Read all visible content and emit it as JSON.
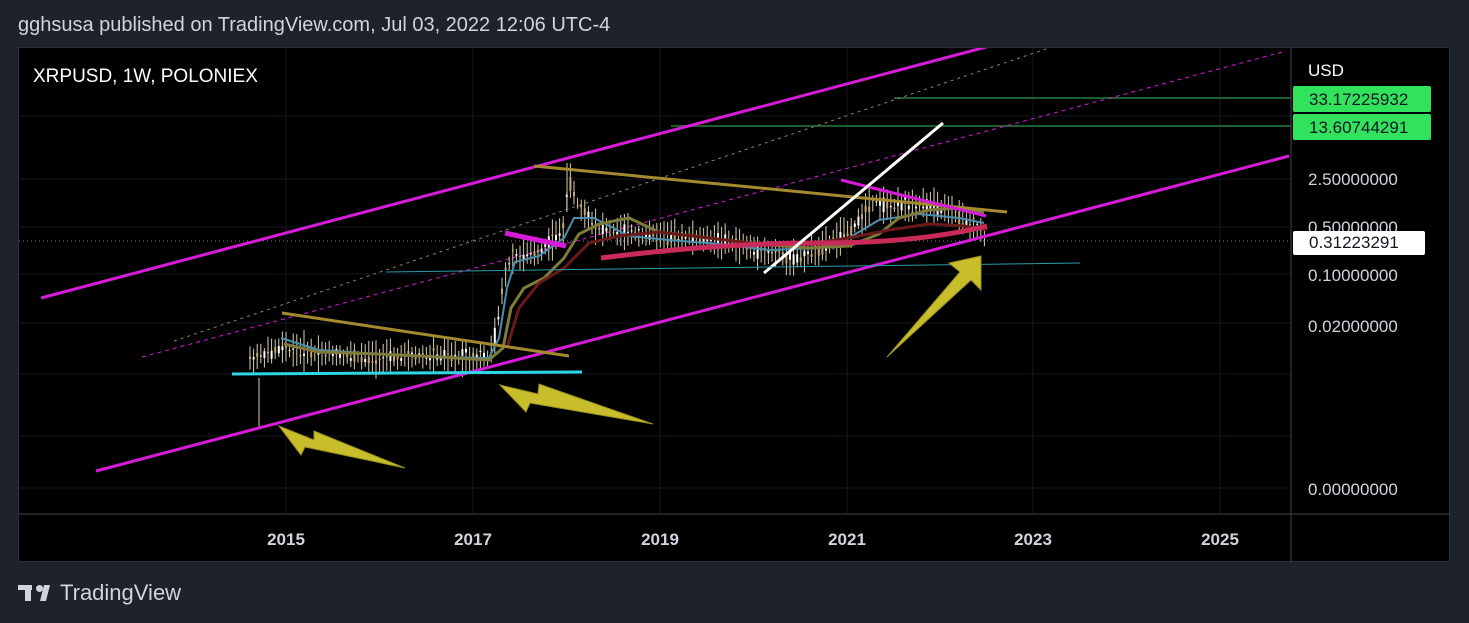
{
  "header": {
    "published": "gghsusa published on TradingView.com, Jul 03, 2022 12:06 UTC-4"
  },
  "footer": {
    "brand": "TradingView"
  },
  "chart_data": {
    "type": "candlestick",
    "title": "XRPUSD, 1W, POLONIEX",
    "currency": "USD",
    "x_ticks": [
      "2015",
      "2017",
      "2019",
      "2021",
      "2023",
      "2025"
    ],
    "y_ticks": [
      "2.50000000",
      "0.50000000",
      "0.10000000",
      "0.02000000",
      "0.00000000"
    ],
    "price_labels": [
      {
        "text": "33.17225932",
        "kind": "target",
        "color": "#22ab38"
      },
      {
        "text": "13.60744291",
        "kind": "target",
        "color": "#22ab38"
      },
      {
        "text": "0.31223291",
        "kind": "current",
        "color": "#ffffff"
      }
    ],
    "colors": {
      "channel": "#d81bd8",
      "trendline": "#a48a2e",
      "support": "#2fd6e6",
      "arrow": "#c8be2c",
      "ma_red": "#c92a5a",
      "target_line": "#1f5e2c"
    },
    "arrows": 3
  }
}
